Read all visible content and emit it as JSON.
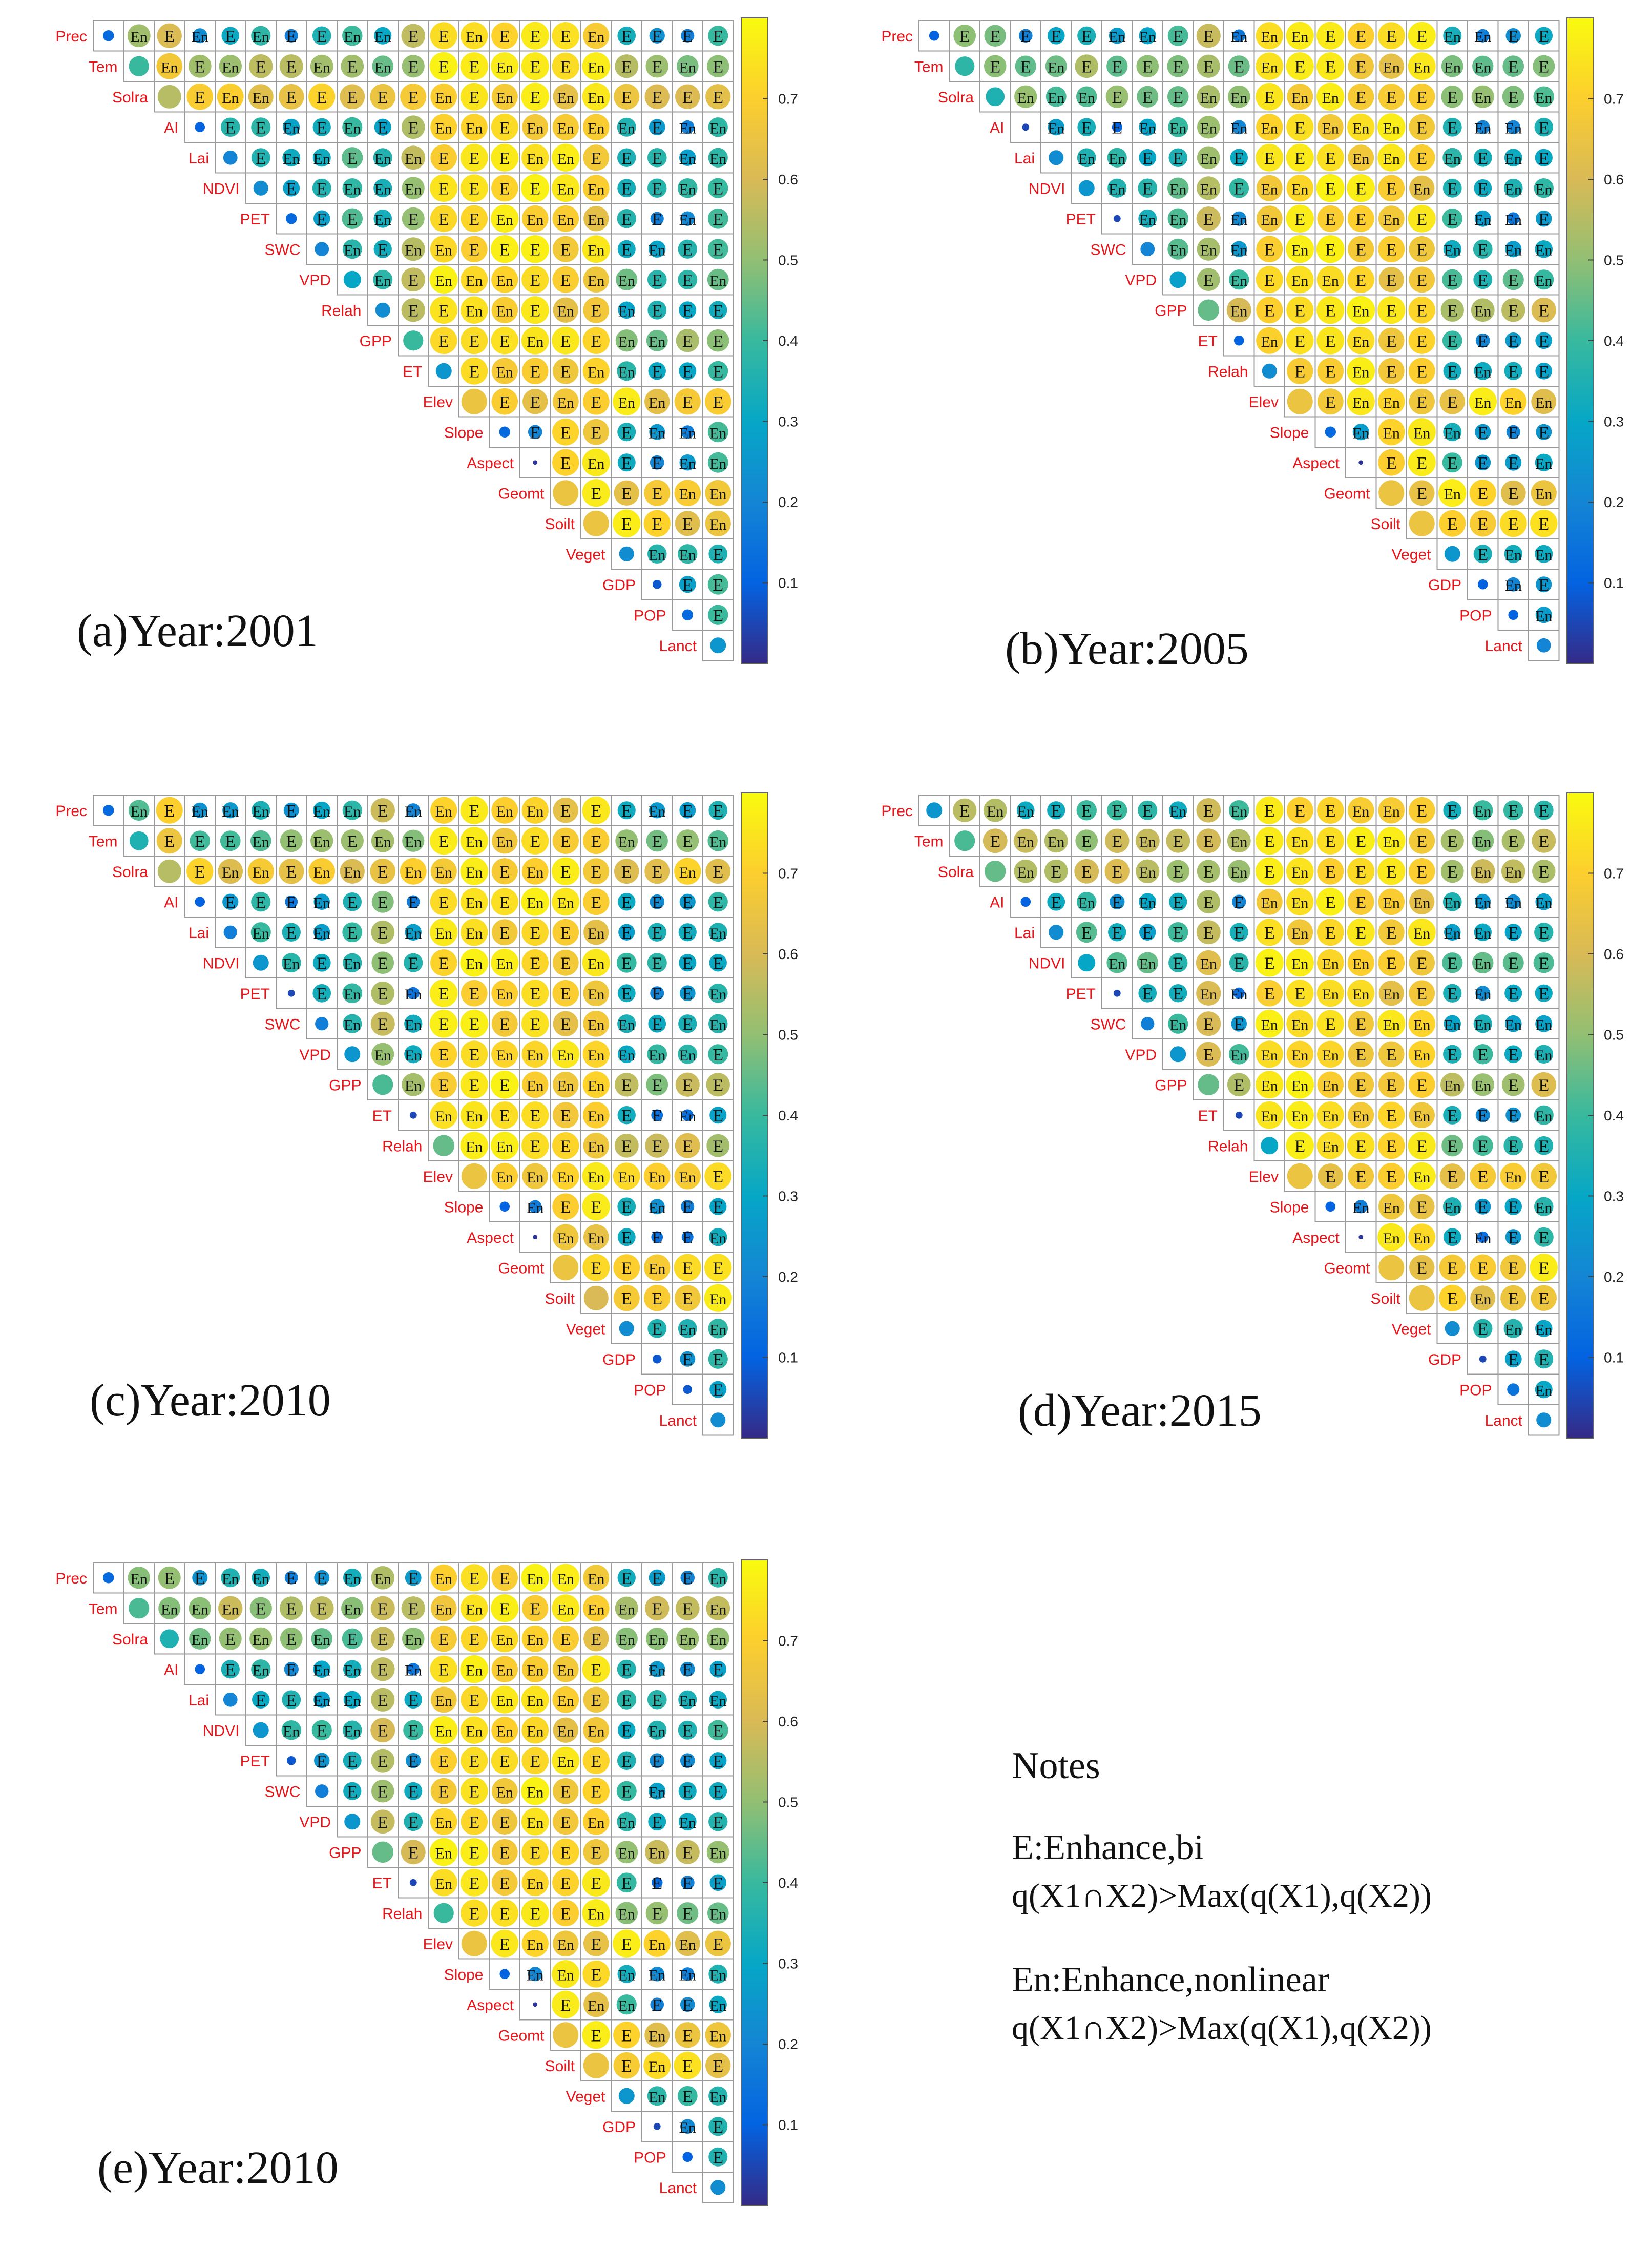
{
  "chart_data": {
    "type": "heatmap",
    "description_encoding": "upper-triangular interaction matrix; circle area and color encode q-value; cell text marks interaction type",
    "variables": [
      "Prec",
      "Tem",
      "Solra",
      "AI",
      "Lai",
      "NDVI",
      "PET",
      "SWC",
      "VPD",
      "Relah",
      "GPP",
      "ET",
      "Elev",
      "Slope",
      "Aspect",
      "Geomt",
      "Soilt",
      "Veget",
      "GDP",
      "POP",
      "Lanct"
    ],
    "colorbar": {
      "ticks": [
        "0.1",
        "0.2",
        "0.3",
        "0.4",
        "0.5",
        "0.6",
        "0.7"
      ],
      "range": [
        0.0,
        0.8
      ]
    },
    "panels": [
      {
        "caption": "(a)Year:2001",
        "row_labels": [
          "Prec",
          "Tem",
          "Solra",
          "AI",
          "Lai",
          "NDVI",
          "PET",
          "SWC",
          "VPD",
          "Relah",
          "GPP",
          "ET",
          "Elev",
          "Slope",
          "Aspect",
          "Geomt",
          "Soilt",
          "Veget",
          "GDP",
          "POP",
          "Lanct"
        ],
        "diag_q": [
          0.12,
          0.4,
          0.55,
          0.1,
          0.2,
          0.22,
          0.12,
          0.2,
          0.3,
          0.22,
          0.4,
          0.25,
          0.65,
          0.12,
          0.02,
          0.65,
          0.65,
          0.22,
          0.08,
          0.12,
          0.25
        ]
      },
      {
        "caption": "(b)Year:2005",
        "row_labels": [
          "Prec",
          "Tem",
          "Solra",
          "AI",
          "Lai",
          "NDVI",
          "PET",
          "SWC",
          "VPD",
          "GPP",
          "ET",
          "Relah",
          "Elev",
          "Slope",
          "Aspect",
          "Geomt",
          "Soilt",
          "Veget",
          "GDP",
          "POP",
          "Lanct"
        ],
        "diag_q": [
          0.1,
          0.38,
          0.35,
          0.05,
          0.22,
          0.25,
          0.05,
          0.2,
          0.28,
          0.45,
          0.1,
          0.22,
          0.65,
          0.12,
          0.02,
          0.65,
          0.65,
          0.25,
          0.1,
          0.1,
          0.2
        ]
      },
      {
        "caption": "(c)Year:2010",
        "row_labels": [
          "Prec",
          "Tem",
          "Solra",
          "AI",
          "Lai",
          "NDVI",
          "PET",
          "SWC",
          "VPD",
          "GPP",
          "ET",
          "Relah",
          "Elev",
          "Slope",
          "Aspect",
          "Geomt",
          "Soilt",
          "Veget",
          "GDP",
          "POP",
          "Lanct"
        ],
        "diag_q": [
          0.12,
          0.35,
          0.55,
          0.1,
          0.18,
          0.25,
          0.05,
          0.18,
          0.25,
          0.42,
          0.05,
          0.45,
          0.65,
          0.1,
          0.02,
          0.65,
          0.6,
          0.22,
          0.08,
          0.08,
          0.22
        ]
      },
      {
        "caption": "(d)Year:2015",
        "row_labels": [
          "Prec",
          "Tem",
          "Solra",
          "AI",
          "Lai",
          "NDVI",
          "PET",
          "SWC",
          "VPD",
          "GPP",
          "ET",
          "Relah",
          "Elev",
          "Slope",
          "Aspect",
          "Geomt",
          "Soilt",
          "Veget",
          "GDP",
          "POP",
          "Lanct"
        ],
        "diag_q": [
          0.25,
          0.42,
          0.45,
          0.1,
          0.22,
          0.3,
          0.05,
          0.18,
          0.25,
          0.45,
          0.05,
          0.3,
          0.65,
          0.1,
          0.02,
          0.65,
          0.65,
          0.22,
          0.05,
          0.15,
          0.22
        ]
      },
      {
        "caption": "(e)Year:2010",
        "row_labels": [
          "Prec",
          "Tem",
          "Solra",
          "AI",
          "Lai",
          "NDVI",
          "PET",
          "SWC",
          "VPD",
          "GPP",
          "ET",
          "Relah",
          "Elev",
          "Slope",
          "Aspect",
          "Geomt",
          "Soilt",
          "Veget",
          "GDP",
          "POP",
          "Lanct"
        ],
        "diag_q": [
          0.12,
          0.42,
          0.35,
          0.1,
          0.2,
          0.25,
          0.08,
          0.18,
          0.25,
          0.45,
          0.05,
          0.4,
          0.65,
          0.1,
          0.02,
          0.65,
          0.65,
          0.25,
          0.05,
          0.1,
          0.22
        ]
      }
    ]
  },
  "notes": {
    "title": "Notes",
    "e_label": "E:Enhance,bi",
    "e_formula": "q(X1∩X2)>Max(q(X1),q(X2))",
    "en_label": "En:Enhance,nonlinear",
    "en_formula": "q(X1∩X2)>Max(q(X1),q(X2))"
  },
  "colors": {
    "label_red": "#e8161b",
    "parula": [
      "#352a87",
      "#0363e1",
      "#1485d4",
      "#06a7c6",
      "#38b99e",
      "#92bf73",
      "#d9ba56",
      "#fcce2e",
      "#f9fb0e"
    ]
  }
}
